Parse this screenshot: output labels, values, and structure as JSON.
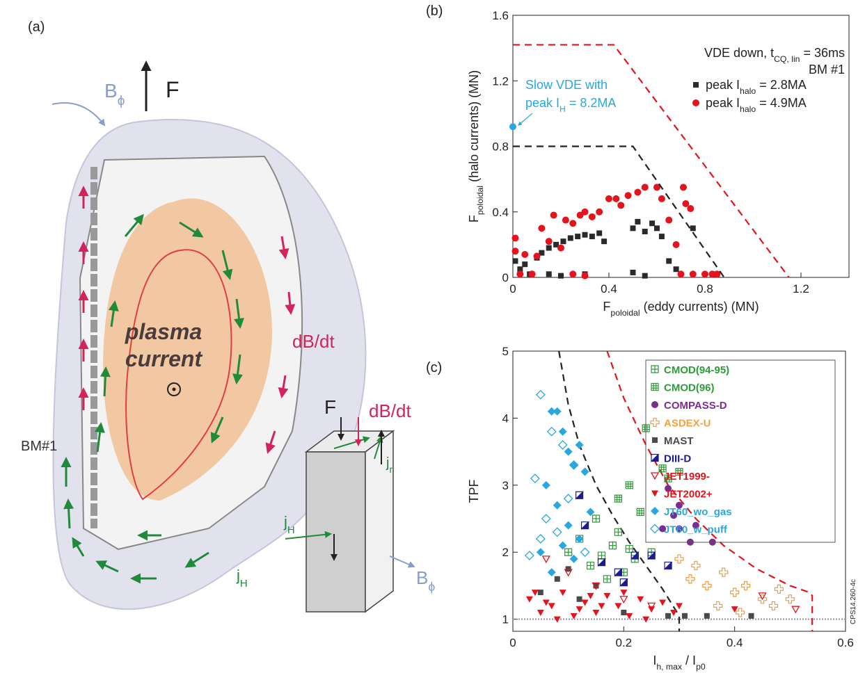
{
  "diagram": {
    "label": "(a)",
    "force": "F",
    "field": [
      {
        "t": "B"
      },
      {
        "t": "ϕ",
        "sub": true
      }
    ],
    "plasma": "plasma",
    "current": "current",
    "dbdt": "dB/dt",
    "bm": "BM#1",
    "halo": [
      {
        "t": "j"
      },
      {
        "t": "H",
        "sub": true
      }
    ],
    "box_force": "F",
    "box_dbdt": "dB/dt",
    "box_jr": [
      {
        "t": "j"
      },
      {
        "t": "r",
        "sub": true
      }
    ],
    "box_jh": [
      {
        "t": "j"
      },
      {
        "t": "H",
        "sub": true
      }
    ],
    "box_field": [
      {
        "t": "B"
      },
      {
        "t": "ϕ",
        "sub": true
      }
    ]
  },
  "chart_data": [
    {
      "type": "scatter",
      "panel_label": "(b)",
      "xlabel": [
        {
          "t": "F"
        },
        {
          "t": "poloidal",
          "sub": true
        },
        {
          "t": " (eddy currents) (MN)"
        }
      ],
      "ylabel": [
        {
          "t": "F"
        },
        {
          "t": "poloidal",
          "sub": true
        },
        {
          "t": " (halo currents) (MN)"
        }
      ],
      "annotation": [
        {
          "t": "VDE down, t"
        },
        {
          "t": "CQ, lin",
          "sub": true
        },
        {
          "t": " = 36ms"
        }
      ],
      "annotation2": "BM #1",
      "note_line1": "Slow VDE with",
      "note_line2": [
        {
          "t": "peak I"
        },
        {
          "t": "H",
          "sub": true
        },
        {
          "t": " = 8.2MA"
        }
      ],
      "xlim": [
        0,
        1.4
      ],
      "ylim": [
        0,
        1.6
      ],
      "xticks": [
        0,
        0.4,
        0.8,
        1.2
      ],
      "yticks": [
        0,
        0.4,
        0.8,
        1.2,
        1.6
      ],
      "series": [
        {
          "name": [
            {
              "t": "peak I"
            },
            {
              "t": "halo",
              "sub": true
            },
            {
              "t": " = 2.8MA"
            }
          ],
          "color": "#2a2a2a",
          "marker": "square",
          "x": [
            0.01,
            0.03,
            0.05,
            0.07,
            0.1,
            0.12,
            0.15,
            0.18,
            0.21,
            0.24,
            0.27,
            0.3,
            0.33,
            0.36,
            0.38,
            0.15,
            0.2,
            0.3,
            0.5,
            0.52,
            0.55,
            0.58,
            0.6,
            0.62,
            0.65,
            0.68,
            0.5,
            0.55,
            0.75,
            0.85
          ],
          "y": [
            0.1,
            0.05,
            0.08,
            0.02,
            0.12,
            0.15,
            0.18,
            0.2,
            0.22,
            0.24,
            0.25,
            0.26,
            0.25,
            0.27,
            0.22,
            0.02,
            0.01,
            0.02,
            0.3,
            0.34,
            0.28,
            0.33,
            0.3,
            0.25,
            0.1,
            0.05,
            0.03,
            0.01,
            0.3,
            0.02
          ]
        },
        {
          "name": [
            {
              "t": "peak I"
            },
            {
              "t": "halo",
              "sub": true
            },
            {
              "t": " = 4.9MA"
            }
          ],
          "color": "#e3141c",
          "marker": "circle",
          "x": [
            0.01,
            0.01,
            0.03,
            0.05,
            0.08,
            0.1,
            0.12,
            0.15,
            0.17,
            0.2,
            0.22,
            0.25,
            0.28,
            0.3,
            0.33,
            0.36,
            0.4,
            0.43,
            0.45,
            0.48,
            0.52,
            0.55,
            0.6,
            0.62,
            0.65,
            0.68,
            0.71,
            0.72,
            0.74,
            0.7,
            0.75,
            0.8,
            0.83,
            0.85,
            0.25,
            0.3
          ],
          "y": [
            0.24,
            0.16,
            0.02,
            0.14,
            0.02,
            0.13,
            0.3,
            0.22,
            0.38,
            0.18,
            0.35,
            0.33,
            0.38,
            0.4,
            0.37,
            0.4,
            0.48,
            0.48,
            0.44,
            0.5,
            0.52,
            0.55,
            0.55,
            0.48,
            0.35,
            0.2,
            0.55,
            0.45,
            0.42,
            0.02,
            0.02,
            0.02,
            0.02,
            0.02,
            0.02,
            0.01
          ]
        },
        {
          "color": "#29a8e0",
          "marker": "circle",
          "x": [
            0
          ],
          "y": [
            0.92
          ]
        },
        {
          "color": "#e3141c",
          "mode": "line",
          "style": "dashed",
          "x": [
            0,
            0.42,
            1.15
          ],
          "y": [
            1.42,
            1.42,
            0
          ]
        },
        {
          "color": "#222222",
          "mode": "line",
          "style": "dashed",
          "x": [
            0,
            0.5,
            0.88
          ],
          "y": [
            0.8,
            0.8,
            0
          ]
        }
      ]
    },
    {
      "type": "scatter",
      "panel_label": "(c)",
      "xlabel": [
        {
          "t": "I"
        },
        {
          "t": "h, max",
          "sub": true
        },
        {
          "t": " / I"
        },
        {
          "t": "p0",
          "sub": true
        }
      ],
      "ylabel": [
        {
          "t": "TPF"
        }
      ],
      "note": "CPS14.260-4c",
      "xlim": [
        0,
        0.6
      ],
      "ylim": [
        0.82,
        5
      ],
      "xticks": [
        0,
        0.2,
        0.4,
        0.6
      ],
      "yticks": [
        1,
        2,
        3,
        4,
        5
      ],
      "series": [
        {
          "color": "#9c9c9c",
          "mode": "line",
          "style": "dotted",
          "x": [
            0,
            0.6
          ],
          "y": [
            1,
            1
          ]
        },
        {
          "color": "#222222",
          "mode": "line",
          "style": "dashed",
          "x": [
            0.083,
            0.1,
            0.12,
            0.15,
            0.18,
            0.21,
            0.24,
            0.27,
            0.3,
            0.3
          ],
          "y": [
            5,
            4.2,
            3.6,
            3.0,
            2.55,
            2.15,
            1.8,
            1.45,
            1.05,
            0.82
          ]
        },
        {
          "color": "#e3141c",
          "mode": "line",
          "style": "dashed",
          "x": [
            0.17,
            0.2,
            0.24,
            0.28,
            0.33,
            0.38,
            0.44,
            0.5,
            0.535,
            0.54,
            0.54
          ],
          "y": [
            5,
            4.3,
            3.6,
            3.0,
            2.5,
            2.1,
            1.75,
            1.5,
            1.4,
            1.35,
            0.82
          ]
        },
        {
          "name": "CMOD(94-95)",
          "color": "#2e9b3a",
          "marker": "squarecross",
          "x": [
            0.12,
            0.15,
            0.18,
            0.2,
            0.22,
            0.14,
            0.25,
            0.17,
            0.1,
            0.19,
            0.16,
            0.21
          ],
          "y": [
            2.2,
            2.5,
            2.1,
            1.7,
            1.9,
            1.8,
            2.0,
            1.6,
            2.0,
            2.3,
            1.95,
            2.05
          ]
        },
        {
          "name": "CMOD(96)",
          "color": "#2e9b3a",
          "marker": "squaregrid",
          "x": [
            0.24,
            0.27,
            0.28,
            0.3,
            0.21,
            0.19,
            0.23
          ],
          "y": [
            3.85,
            3.25,
            3.1,
            3.2,
            3.0,
            2.8,
            2.6
          ]
        },
        {
          "name": "COMPASS-D",
          "color": "#7b2d8e",
          "marker": "circle",
          "x": [
            0.3,
            0.29,
            0.3,
            0.27,
            0.33,
            0.32,
            0.36,
            0.28
          ],
          "y": [
            2.7,
            2.55,
            2.35,
            2.35,
            2.4,
            2.15,
            2.15,
            2.95
          ]
        },
        {
          "name": "ASDEX-U",
          "color": "#f5a142",
          "marker": "cross",
          "x": [
            0.3,
            0.32,
            0.35,
            0.38,
            0.4,
            0.42,
            0.45,
            0.48,
            0.5,
            0.37,
            0.33,
            0.41,
            0.47
          ],
          "y": [
            1.9,
            1.6,
            1.5,
            1.7,
            1.4,
            1.5,
            1.3,
            1.45,
            1.3,
            1.2,
            1.8,
            1.1,
            1.2
          ]
        },
        {
          "name": "MAST",
          "color": "#4a4a4a",
          "marker": "square",
          "x": [
            0.05,
            0.08,
            0.12,
            0.2,
            0.28,
            0.31,
            0.35,
            0.43,
            0.15,
            0.1
          ],
          "y": [
            1.4,
            1.6,
            1.3,
            1.1,
            1.05,
            1.05,
            1.05,
            1.05,
            1.5,
            1.75
          ]
        },
        {
          "name": "DIII-D",
          "color": "#1c1c8e",
          "marker": "halfsquare",
          "x": [
            0.12,
            0.13,
            0.16,
            0.19,
            0.22,
            0.25,
            0.28,
            0.2
          ],
          "y": [
            2.85,
            2.4,
            1.85,
            1.7,
            1.95,
            1.95,
            1.8,
            1.55
          ]
        },
        {
          "name": "JET1999-",
          "color": "#e3141c",
          "marker": "tri",
          "x": [
            0.06,
            0.1,
            0.15,
            0.2,
            0.25,
            0.45,
            0.51
          ],
          "y": [
            1.9,
            1.7,
            1.5,
            1.3,
            1.2,
            1.35,
            1.15
          ]
        },
        {
          "name": "JET2002+",
          "color": "#e3141c",
          "marker": "trifill",
          "x": [
            0.03,
            0.05,
            0.07,
            0.09,
            0.11,
            0.13,
            0.15,
            0.17,
            0.19,
            0.21,
            0.23,
            0.25,
            0.27,
            0.29,
            0.04,
            0.08,
            0.12,
            0.16,
            0.2,
            0.24,
            0.3,
            0.4,
            0.06,
            0.14
          ],
          "y": [
            1.3,
            1.1,
            1.2,
            1.4,
            1.05,
            1.25,
            1.1,
            1.35,
            1.2,
            1.05,
            1.3,
            1.15,
            1.25,
            1.1,
            1.4,
            1.0,
            1.15,
            1.2,
            1.4,
            1.0,
            1.2,
            1.15,
            1.25,
            1.35
          ]
        },
        {
          "name": "JT60_wo_gas",
          "color": "#29a8e0",
          "marker": "diamond",
          "x": [
            0.07,
            0.08,
            0.09,
            0.1,
            0.11,
            0.12,
            0.13,
            0.06,
            0.08,
            0.1,
            0.12,
            0.14,
            0.05,
            0.09,
            0.07,
            0.11
          ],
          "y": [
            4.1,
            4.1,
            3.8,
            3.5,
            3.3,
            3.6,
            3.2,
            3.0,
            2.7,
            2.4,
            2.2,
            2.6,
            2.0,
            2.1,
            1.7,
            1.9
          ]
        },
        {
          "name": "JT60_w_puff",
          "color": "#29a8e0",
          "marker": "diamondopen",
          "x": [
            0.05,
            0.07,
            0.09,
            0.11,
            0.04,
            0.06,
            0.1,
            0.08,
            0.03,
            0.13,
            0.05
          ],
          "y": [
            4.35,
            3.8,
            3.6,
            3.3,
            3.1,
            2.5,
            2.8,
            2.3,
            1.95,
            2.0,
            2.2
          ]
        }
      ]
    }
  ]
}
